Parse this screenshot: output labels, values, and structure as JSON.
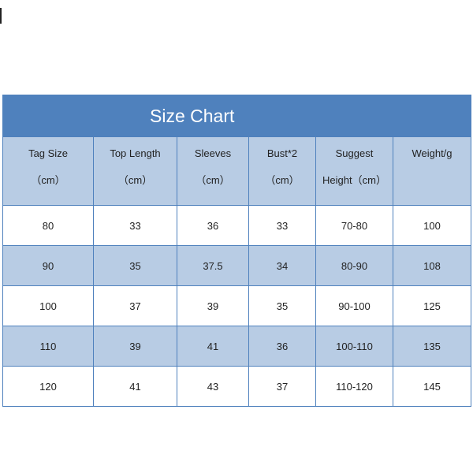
{
  "title": "Size Chart",
  "colors": {
    "title_bg": "#4f81bd",
    "header_bg": "#b8cce4",
    "alt_row_bg": "#b8cce4",
    "border": "#4f81bd"
  },
  "headers": [
    {
      "line1": "Tag Size",
      "line2": "（cm）"
    },
    {
      "line1": "Top Length",
      "line2": "（cm）"
    },
    {
      "line1": "Sleeves",
      "line2": "（cm）"
    },
    {
      "line1": "Bust*2",
      "line2": "（cm）"
    },
    {
      "line1": "Suggest",
      "line2": "Height（cm）"
    },
    {
      "line1": "Weight/g",
      "line2": ""
    }
  ],
  "rows": [
    [
      "80",
      "33",
      "36",
      "33",
      "70-80",
      "100"
    ],
    [
      "90",
      "35",
      "37.5",
      "34",
      "80-90",
      "108"
    ],
    [
      "100",
      "37",
      "39",
      "35",
      "90-100",
      "125"
    ],
    [
      "110",
      "39",
      "41",
      "36",
      "100-110",
      "135"
    ],
    [
      "120",
      "41",
      "43",
      "37",
      "110-120",
      "145"
    ]
  ]
}
